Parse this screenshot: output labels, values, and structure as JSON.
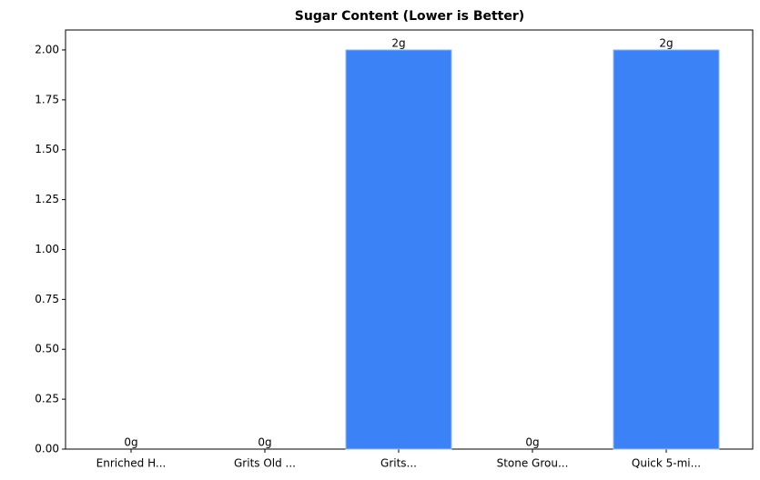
{
  "chart_data": {
    "type": "bar",
    "title": "Sugar Content (Lower is Better)",
    "categories": [
      "Enriched H...",
      "Grits Old ...",
      "Grits...",
      "Stone Grou...",
      "Quick 5-mi..."
    ],
    "values": [
      0,
      0,
      2,
      0,
      2
    ],
    "value_labels": [
      "0g",
      "0g",
      "2g",
      "0g",
      "2g"
    ],
    "color": "#3b82f6",
    "ylim": [
      0,
      2.1
    ],
    "yticks": [
      {
        "value": 0,
        "label": "0.00"
      },
      {
        "value": 0.25,
        "label": "0.25"
      },
      {
        "value": 0.5,
        "label": "0.50"
      },
      {
        "value": 0.75,
        "label": "0.75"
      },
      {
        "value": 1,
        "label": "1.00"
      },
      {
        "value": 1.25,
        "label": "1.25"
      },
      {
        "value": 1.5,
        "label": "1.50"
      },
      {
        "value": 1.75,
        "label": "1.75"
      },
      {
        "value": 2,
        "label": "2.00"
      }
    ],
    "grid": false
  }
}
